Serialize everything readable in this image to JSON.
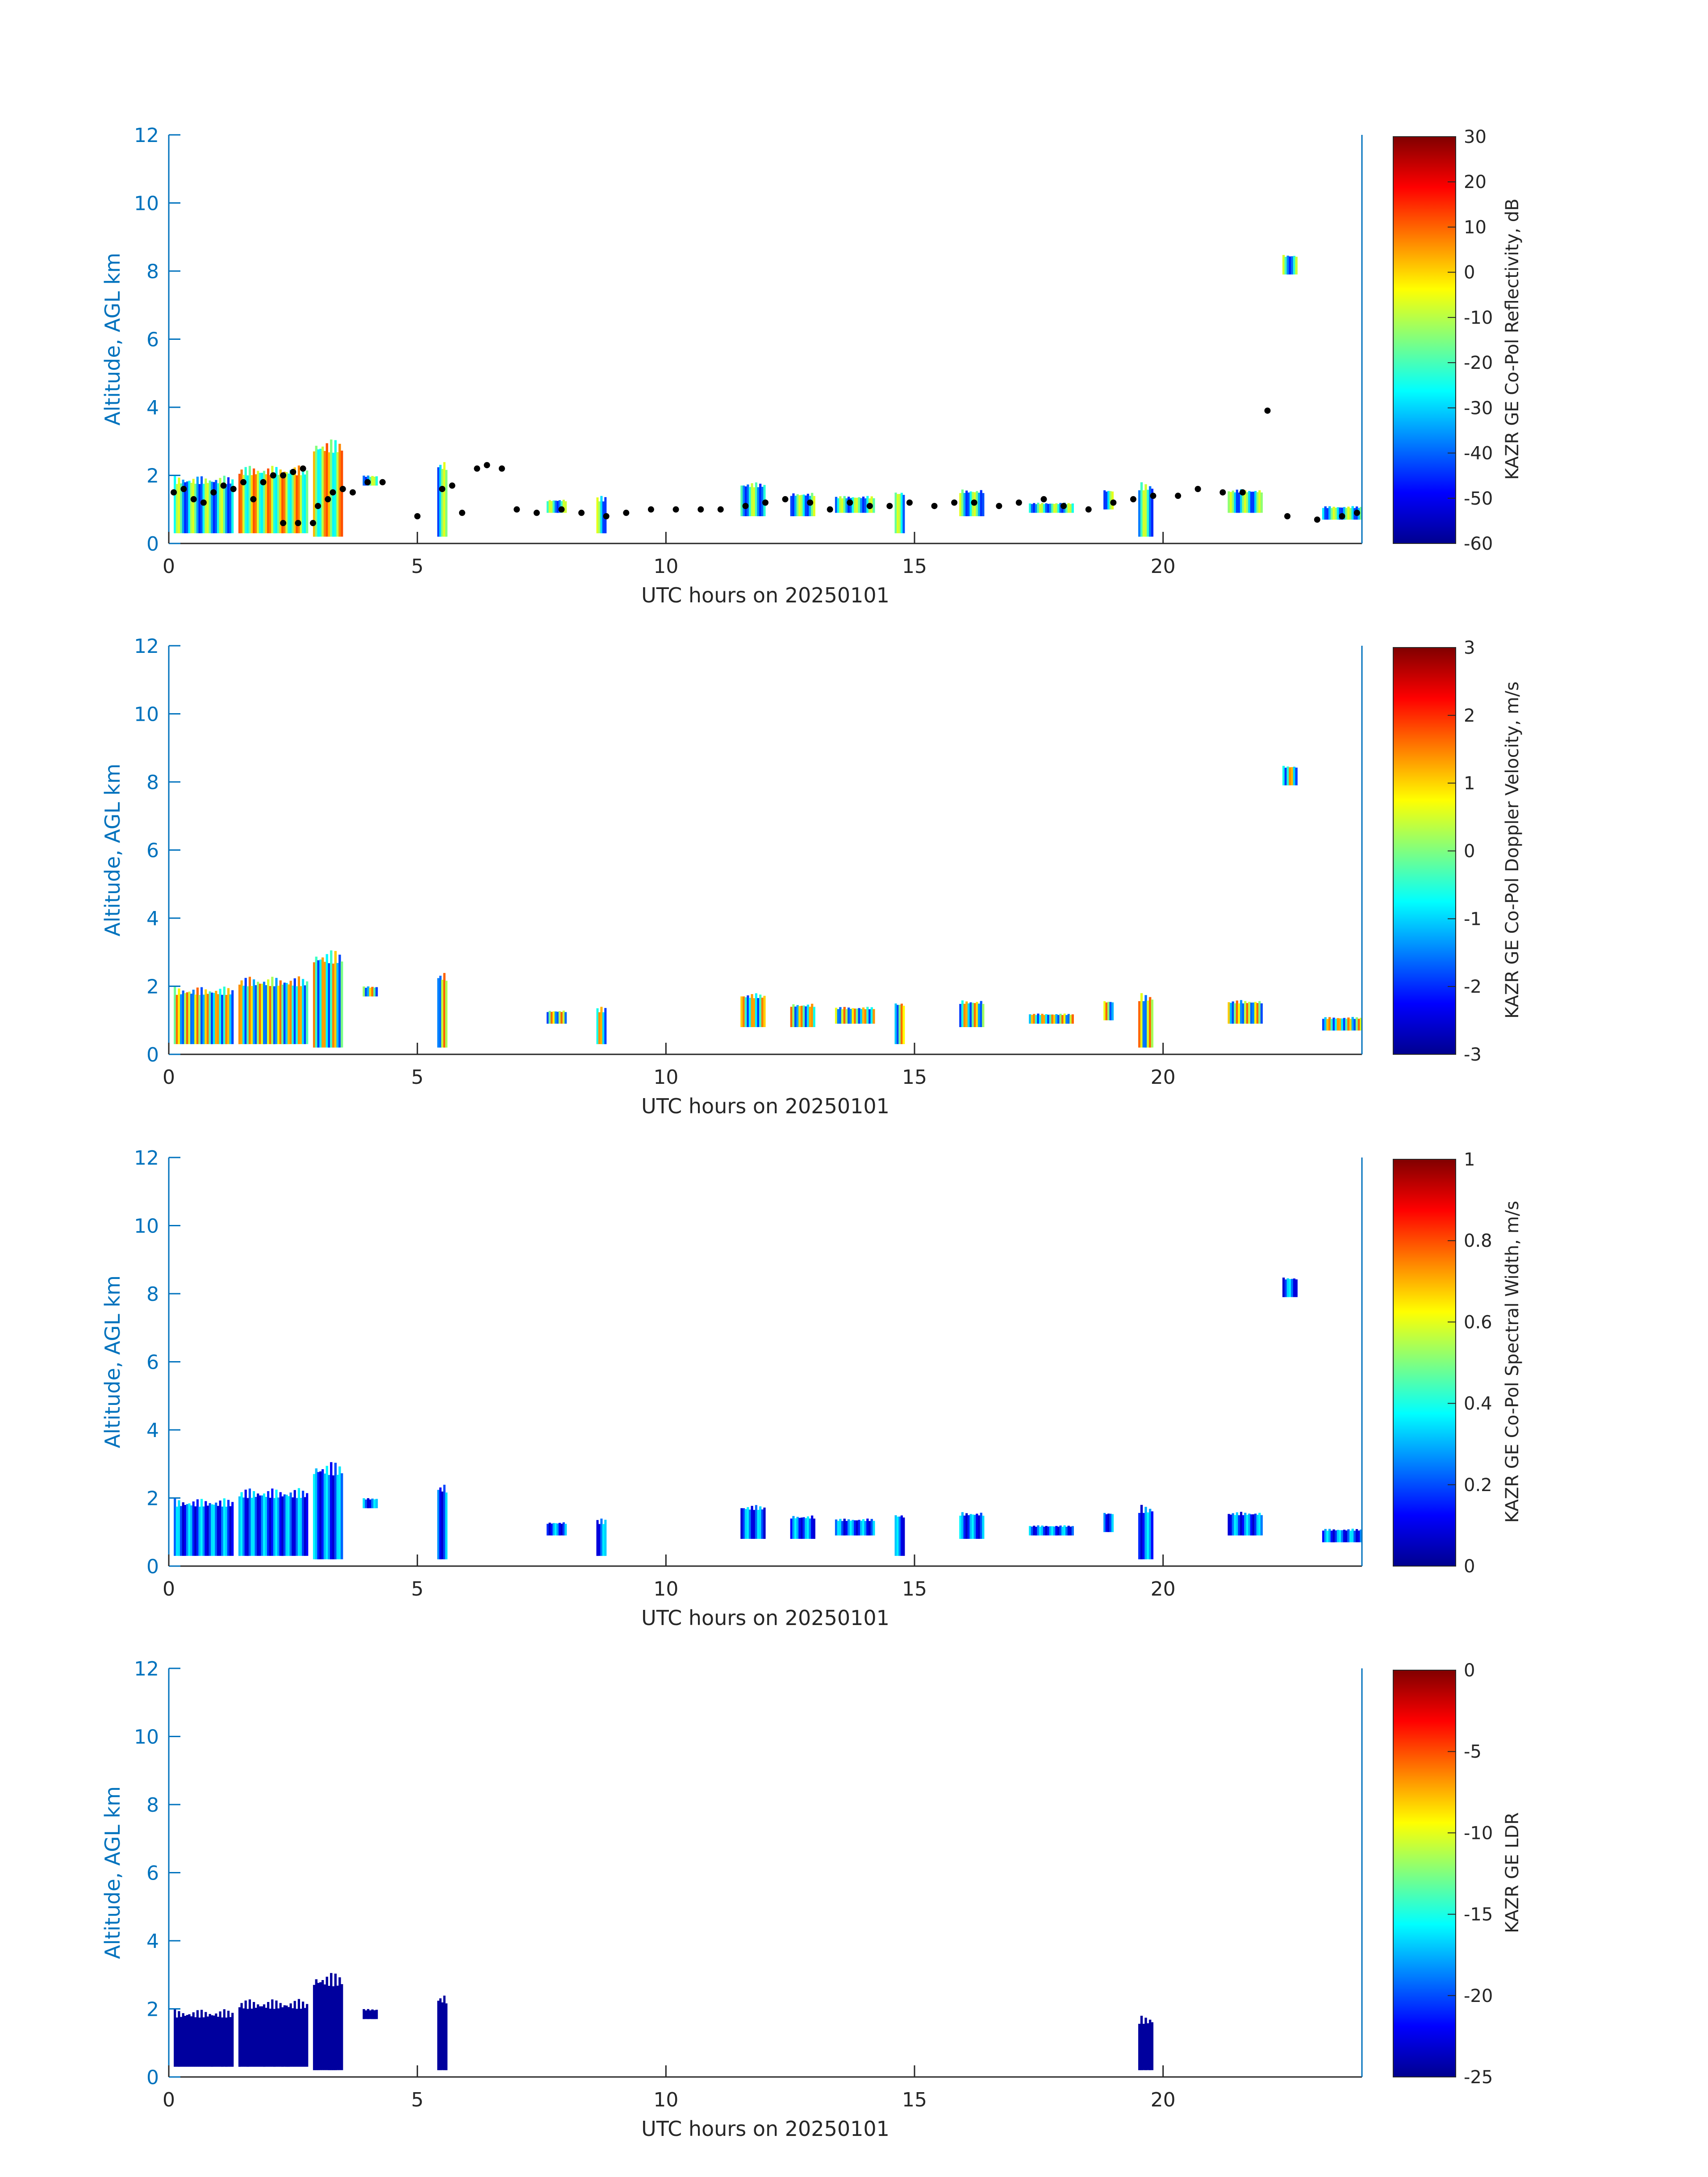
{
  "chart_data": [
    {
      "type": "heatmap",
      "xlabel": "UTC hours on 20250101",
      "ylabel": "Altitude, AGL km",
      "xlim": [
        0,
        24
      ],
      "ylim": [
        0,
        12
      ],
      "xticks": [
        0,
        5,
        10,
        15,
        20
      ],
      "yticks": [
        0,
        2,
        4,
        6,
        8,
        10,
        12
      ],
      "colorbar": {
        "label": "KAZR GE Co-Pol Reflectivity, dB",
        "range": [
          -60,
          30
        ],
        "ticks": [
          -60,
          -50,
          -40,
          -30,
          -20,
          -10,
          0,
          10,
          20,
          30
        ],
        "colormap": "jet"
      },
      "cloud_base_points": true
    },
    {
      "type": "heatmap",
      "xlabel": "UTC hours on 20250101",
      "ylabel": "Altitude, AGL km",
      "xlim": [
        0,
        24
      ],
      "ylim": [
        0,
        12
      ],
      "xticks": [
        0,
        5,
        10,
        15,
        20
      ],
      "yticks": [
        0,
        2,
        4,
        6,
        8,
        10,
        12
      ],
      "colorbar": {
        "label": "KAZR GE Co-Pol Doppler Velocity, m/s",
        "range": [
          -3,
          3
        ],
        "ticks": [
          -3,
          -2,
          -1,
          0,
          1,
          2,
          3
        ],
        "colormap": "jet"
      },
      "cloud_base_points": false
    },
    {
      "type": "heatmap",
      "xlabel": "UTC hours on 20250101",
      "ylabel": "Altitude, AGL km",
      "xlim": [
        0,
        24
      ],
      "ylim": [
        0,
        12
      ],
      "xticks": [
        0,
        5,
        10,
        15,
        20
      ],
      "yticks": [
        0,
        2,
        4,
        6,
        8,
        10,
        12
      ],
      "colorbar": {
        "label": "KAZR GE Co-Pol Spectral Width, m/s",
        "range": [
          0,
          1
        ],
        "ticks": [
          0,
          0.2,
          0.4,
          0.6,
          0.8,
          1
        ],
        "colormap": "jet"
      },
      "cloud_base_points": false
    },
    {
      "type": "heatmap",
      "xlabel": "UTC hours on 20250101",
      "ylabel": "Altitude, AGL km",
      "xlim": [
        0,
        24
      ],
      "ylim": [
        0,
        12
      ],
      "xticks": [
        0,
        5,
        10,
        15,
        20
      ],
      "yticks": [
        0,
        2,
        4,
        6,
        8,
        10,
        12
      ],
      "colorbar": {
        "label": "KAZR GE LDR",
        "range": [
          -25,
          0
        ],
        "ticks": [
          -25,
          -20,
          -15,
          -10,
          -5,
          0
        ],
        "colormap": "jet"
      },
      "cloud_base_points": false
    }
  ],
  "cloud_features": [
    {
      "t0": 0.1,
      "t1": 1.3,
      "base": 0.3,
      "top": 2.0
    },
    {
      "t0": 1.4,
      "t1": 2.8,
      "base": 0.3,
      "top": 2.3
    },
    {
      "t0": 2.9,
      "t1": 3.5,
      "base": 0.2,
      "top": 3.1
    },
    {
      "t0": 3.9,
      "t1": 4.2,
      "base": 1.7,
      "top": 2.0
    },
    {
      "t0": 5.4,
      "t1": 5.6,
      "base": 0.2,
      "top": 2.5
    },
    {
      "t0": 7.6,
      "t1": 8.0,
      "base": 0.9,
      "top": 1.3
    },
    {
      "t0": 8.6,
      "t1": 8.8,
      "base": 0.3,
      "top": 1.4
    },
    {
      "t0": 11.5,
      "t1": 12.0,
      "base": 0.8,
      "top": 1.8
    },
    {
      "t0": 12.5,
      "t1": 13.0,
      "base": 0.8,
      "top": 1.5
    },
    {
      "t0": 13.4,
      "t1": 14.2,
      "base": 0.9,
      "top": 1.4
    },
    {
      "t0": 14.6,
      "t1": 14.8,
      "base": 0.3,
      "top": 1.6
    },
    {
      "t0": 15.9,
      "t1": 16.4,
      "base": 0.8,
      "top": 1.6
    },
    {
      "t0": 17.3,
      "t1": 18.2,
      "base": 0.9,
      "top": 1.2
    },
    {
      "t0": 18.8,
      "t1": 19.0,
      "base": 1.0,
      "top": 1.6
    },
    {
      "t0": 19.5,
      "t1": 19.8,
      "base": 0.2,
      "top": 1.8
    },
    {
      "t0": 21.3,
      "t1": 22.0,
      "base": 0.9,
      "top": 1.6
    },
    {
      "t0": 22.4,
      "t1": 22.7,
      "base": 7.9,
      "top": 8.5
    },
    {
      "t0": 23.2,
      "t1": 24.0,
      "base": 0.7,
      "top": 1.1
    }
  ],
  "cloud_base_points": [
    [
      0.1,
      1.5
    ],
    [
      0.3,
      1.6
    ],
    [
      0.5,
      1.3
    ],
    [
      0.7,
      1.2
    ],
    [
      0.9,
      1.5
    ],
    [
      1.1,
      1.7
    ],
    [
      1.3,
      1.6
    ],
    [
      1.5,
      1.8
    ],
    [
      1.7,
      1.3
    ],
    [
      1.9,
      1.8
    ],
    [
      2.1,
      2.0
    ],
    [
      2.3,
      2.0
    ],
    [
      2.5,
      2.1
    ],
    [
      2.7,
      2.2
    ],
    [
      2.3,
      0.6
    ],
    [
      2.6,
      0.6
    ],
    [
      2.9,
      0.6
    ],
    [
      3.0,
      1.1
    ],
    [
      3.2,
      1.3
    ],
    [
      3.3,
      1.5
    ],
    [
      3.5,
      1.6
    ],
    [
      3.7,
      1.5
    ],
    [
      4.0,
      1.8
    ],
    [
      4.3,
      1.8
    ],
    [
      5.0,
      0.8
    ],
    [
      5.5,
      1.6
    ],
    [
      5.7,
      1.7
    ],
    [
      5.9,
      0.9
    ],
    [
      6.2,
      2.2
    ],
    [
      6.4,
      2.3
    ],
    [
      6.7,
      2.2
    ],
    [
      7.0,
      1.0
    ],
    [
      7.4,
      0.9
    ],
    [
      7.9,
      1.0
    ],
    [
      8.3,
      0.9
    ],
    [
      8.8,
      0.8
    ],
    [
      9.2,
      0.9
    ],
    [
      9.7,
      1.0
    ],
    [
      10.2,
      1.0
    ],
    [
      10.7,
      1.0
    ],
    [
      11.1,
      1.0
    ],
    [
      11.6,
      1.1
    ],
    [
      12.0,
      1.2
    ],
    [
      12.4,
      1.3
    ],
    [
      12.9,
      1.2
    ],
    [
      13.3,
      1.0
    ],
    [
      13.7,
      1.2
    ],
    [
      14.1,
      1.1
    ],
    [
      14.5,
      1.1
    ],
    [
      14.9,
      1.2
    ],
    [
      15.4,
      1.1
    ],
    [
      15.8,
      1.2
    ],
    [
      16.2,
      1.2
    ],
    [
      16.7,
      1.1
    ],
    [
      17.1,
      1.2
    ],
    [
      17.6,
      1.3
    ],
    [
      18.0,
      1.1
    ],
    [
      18.5,
      1.0
    ],
    [
      19.0,
      1.2
    ],
    [
      19.4,
      1.3
    ],
    [
      19.8,
      1.4
    ],
    [
      20.3,
      1.4
    ],
    [
      20.7,
      1.6
    ],
    [
      21.2,
      1.5
    ],
    [
      21.6,
      1.5
    ],
    [
      22.1,
      3.9
    ],
    [
      22.5,
      0.8
    ],
    [
      23.1,
      0.7
    ],
    [
      23.6,
      0.8
    ],
    [
      23.9,
      0.9
    ]
  ],
  "colors": {
    "axis": "#0072BD",
    "text": "#262626",
    "points": "#000000"
  }
}
